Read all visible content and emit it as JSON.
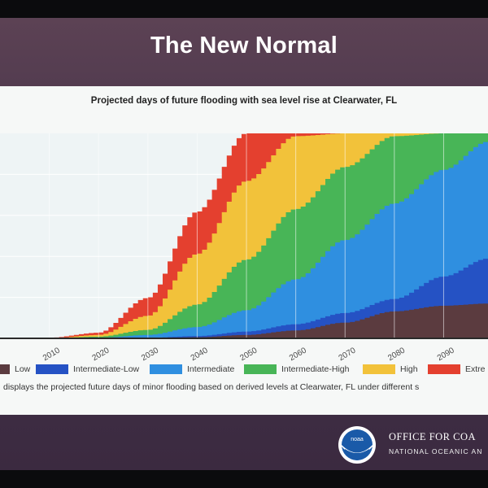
{
  "slide": {
    "title": "The New Normal"
  },
  "chart_data": {
    "type": "area",
    "title": "Projected days of future flooding with sea level rise at Clearwater, FL",
    "x_ticks": [
      "2010",
      "2020",
      "2030",
      "2040",
      "2050",
      "2060",
      "2070",
      "2080",
      "2090"
    ],
    "xlim": [
      2000,
      2099
    ],
    "ylim": [
      0,
      365
    ],
    "grid": true,
    "legend_position": "bottom",
    "series": [
      {
        "name": "Low",
        "color": "#5b3b3f",
        "points": [
          [
            2000,
            0
          ],
          [
            2030,
            0
          ],
          [
            2040,
            2
          ],
          [
            2050,
            6
          ],
          [
            2060,
            14
          ],
          [
            2070,
            28
          ],
          [
            2080,
            48
          ],
          [
            2090,
            58
          ],
          [
            2099,
            62
          ]
        ]
      },
      {
        "name": "Intermediate-Low",
        "color": "#2552c4",
        "points": [
          [
            2000,
            0
          ],
          [
            2020,
            0
          ],
          [
            2030,
            1
          ],
          [
            2040,
            4
          ],
          [
            2050,
            12
          ],
          [
            2060,
            25
          ],
          [
            2070,
            45
          ],
          [
            2080,
            70
          ],
          [
            2090,
            110
          ],
          [
            2099,
            142
          ]
        ]
      },
      {
        "name": "Intermediate",
        "color": "#2f8fe0",
        "points": [
          [
            2000,
            0
          ],
          [
            2010,
            0
          ],
          [
            2020,
            1
          ],
          [
            2030,
            6
          ],
          [
            2040,
            20
          ],
          [
            2050,
            50
          ],
          [
            2060,
            105
          ],
          [
            2070,
            175
          ],
          [
            2080,
            240
          ],
          [
            2090,
            300
          ],
          [
            2099,
            350
          ]
        ]
      },
      {
        "name": "Intermediate-High",
        "color": "#48b557",
        "points": [
          [
            2000,
            0
          ],
          [
            2010,
            0
          ],
          [
            2020,
            3
          ],
          [
            2030,
            15
          ],
          [
            2040,
            60
          ],
          [
            2050,
            140
          ],
          [
            2060,
            230
          ],
          [
            2070,
            305
          ],
          [
            2080,
            360
          ],
          [
            2090,
            365
          ],
          [
            2099,
            365
          ]
        ]
      },
      {
        "name": "High",
        "color": "#f2c23a",
        "points": [
          [
            2000,
            0
          ],
          [
            2010,
            0
          ],
          [
            2020,
            6
          ],
          [
            2030,
            40
          ],
          [
            2040,
            150
          ],
          [
            2050,
            280
          ],
          [
            2060,
            360
          ],
          [
            2070,
            365
          ],
          [
            2099,
            365
          ]
        ]
      },
      {
        "name": "Extreme",
        "color": "#e4402f",
        "points": [
          [
            2000,
            0
          ],
          [
            2010,
            1
          ],
          [
            2020,
            10
          ],
          [
            2030,
            72
          ],
          [
            2040,
            225
          ],
          [
            2050,
            365
          ],
          [
            2099,
            365
          ]
        ]
      }
    ]
  },
  "legend": {
    "items": [
      {
        "label": "Low",
        "color": "#5b3b3f"
      },
      {
        "label": "Intermediate-Low",
        "color": "#2552c4"
      },
      {
        "label": "Intermediate",
        "color": "#2f8fe0"
      },
      {
        "label": "Intermediate-High",
        "color": "#48b557"
      },
      {
        "label": "High",
        "color": "#f2c23a"
      },
      {
        "label": "Extre",
        "color": "#e4402f"
      }
    ]
  },
  "caption": "displays the projected future days of minor flooding based on derived levels at Clearwater, FL under different s",
  "footer": {
    "org_name": "OFFICE FOR COA",
    "org_sub": "NATIONAL OCEANIC AN",
    "logo_text": "noaa"
  }
}
